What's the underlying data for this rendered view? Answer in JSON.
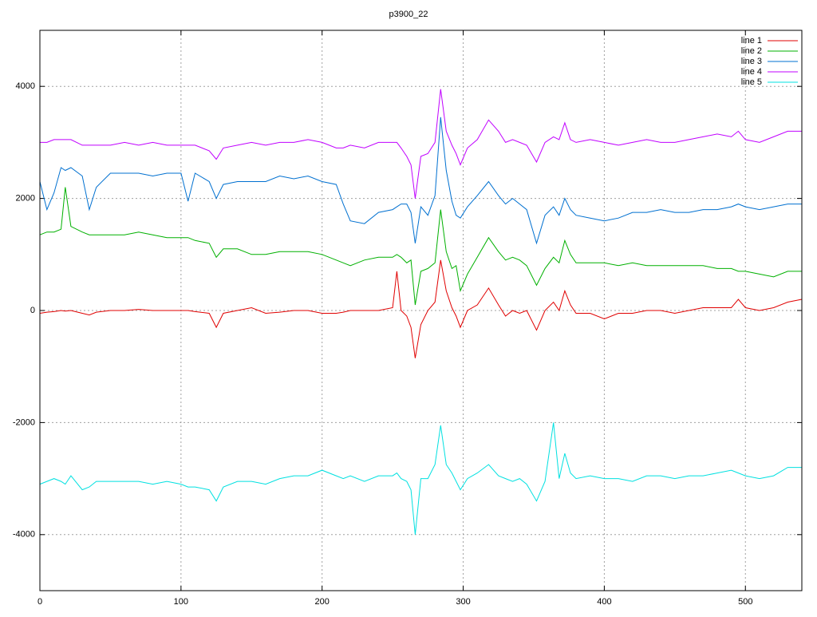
{
  "chart_data": {
    "type": "line",
    "title": "p3900_22",
    "x": [
      0,
      5,
      10,
      15,
      18,
      22,
      30,
      35,
      40,
      50,
      60,
      70,
      80,
      90,
      100,
      105,
      110,
      120,
      125,
      130,
      140,
      150,
      160,
      170,
      180,
      190,
      200,
      210,
      215,
      220,
      230,
      240,
      250,
      253,
      256,
      260,
      263,
      266,
      270,
      275,
      280,
      284,
      288,
      292,
      295,
      298,
      303,
      310,
      318,
      325,
      330,
      335,
      340,
      345,
      352,
      358,
      364,
      368,
      372,
      376,
      380,
      390,
      400,
      410,
      420,
      430,
      440,
      450,
      460,
      470,
      480,
      490,
      495,
      500,
      510,
      520,
      530,
      540
    ],
    "series": [
      {
        "name": "line 1",
        "color": "#e00000",
        "values": [
          -50,
          -30,
          -20,
          0,
          -10,
          0,
          -50,
          -80,
          -30,
          0,
          0,
          20,
          0,
          0,
          0,
          0,
          -20,
          -50,
          -300,
          -50,
          0,
          50,
          -50,
          -30,
          0,
          0,
          -50,
          -50,
          -30,
          0,
          0,
          0,
          50,
          700,
          0,
          -100,
          -300,
          -850,
          -250,
          0,
          150,
          900,
          350,
          50,
          -100,
          -300,
          0,
          100,
          400,
          100,
          -100,
          0,
          -50,
          0,
          -350,
          0,
          150,
          0,
          350,
          100,
          -50,
          -50,
          -150,
          -50,
          -50,
          0,
          0,
          -50,
          0,
          50,
          50,
          50,
          200,
          50,
          0,
          50,
          150,
          200
        ]
      },
      {
        "name": "line 2",
        "color": "#00b000",
        "values": [
          1350,
          1400,
          1400,
          1450,
          2200,
          1500,
          1400,
          1350,
          1350,
          1350,
          1350,
          1400,
          1350,
          1300,
          1300,
          1300,
          1250,
          1200,
          950,
          1100,
          1100,
          1000,
          1000,
          1050,
          1050,
          1050,
          1000,
          900,
          850,
          800,
          900,
          950,
          950,
          1000,
          950,
          850,
          900,
          100,
          700,
          750,
          850,
          1800,
          1050,
          750,
          800,
          350,
          650,
          950,
          1300,
          1050,
          900,
          950,
          900,
          800,
          450,
          750,
          950,
          850,
          1250,
          1000,
          850,
          850,
          850,
          800,
          850,
          800,
          800,
          800,
          800,
          800,
          750,
          750,
          700,
          700,
          650,
          600,
          700,
          700
        ]
      },
      {
        "name": "line 3",
        "color": "#0070d0",
        "values": [
          2300,
          1800,
          2100,
          2550,
          2500,
          2550,
          2400,
          1800,
          2200,
          2450,
          2450,
          2450,
          2400,
          2450,
          2450,
          1950,
          2450,
          2300,
          2000,
          2250,
          2300,
          2300,
          2300,
          2400,
          2350,
          2400,
          2300,
          2250,
          1900,
          1600,
          1550,
          1750,
          1800,
          1850,
          1900,
          1900,
          1750,
          1200,
          1850,
          1700,
          2050,
          3450,
          2500,
          1950,
          1700,
          1650,
          1850,
          2050,
          2300,
          2050,
          1900,
          2000,
          1900,
          1800,
          1200,
          1700,
          1850,
          1700,
          2000,
          1800,
          1700,
          1650,
          1600,
          1650,
          1750,
          1750,
          1800,
          1750,
          1750,
          1800,
          1800,
          1850,
          1900,
          1850,
          1800,
          1850,
          1900,
          1900
        ]
      },
      {
        "name": "line 4",
        "color": "#c000ff",
        "values": [
          3000,
          3000,
          3050,
          3050,
          3050,
          3050,
          2950,
          2950,
          2950,
          2950,
          3000,
          2950,
          3000,
          2950,
          2950,
          2950,
          2950,
          2850,
          2700,
          2900,
          2950,
          3000,
          2950,
          3000,
          3000,
          3050,
          3000,
          2900,
          2900,
          2950,
          2900,
          3000,
          3000,
          3000,
          2900,
          2750,
          2600,
          2000,
          2750,
          2800,
          3000,
          3950,
          3200,
          2950,
          2800,
          2600,
          2900,
          3050,
          3400,
          3200,
          3000,
          3050,
          3000,
          2950,
          2650,
          3000,
          3100,
          3050,
          3350,
          3050,
          3000,
          3050,
          3000,
          2950,
          3000,
          3050,
          3000,
          3000,
          3050,
          3100,
          3150,
          3100,
          3200,
          3050,
          3000,
          3100,
          3200,
          3200
        ]
      },
      {
        "name": "line 5",
        "color": "#00e0e0",
        "values": [
          -3100,
          -3050,
          -3000,
          -3050,
          -3100,
          -2950,
          -3200,
          -3150,
          -3050,
          -3050,
          -3050,
          -3050,
          -3100,
          -3050,
          -3100,
          -3150,
          -3150,
          -3200,
          -3400,
          -3150,
          -3050,
          -3050,
          -3100,
          -3000,
          -2950,
          -2950,
          -2850,
          -2950,
          -3000,
          -2950,
          -3050,
          -2950,
          -2950,
          -2900,
          -3000,
          -3050,
          -3200,
          -4000,
          -3000,
          -3000,
          -2750,
          -2050,
          -2750,
          -2900,
          -3050,
          -3200,
          -3000,
          -2900,
          -2750,
          -2950,
          -3000,
          -3050,
          -3000,
          -3100,
          -3400,
          -3050,
          -2000,
          -3000,
          -2550,
          -2900,
          -3000,
          -2950,
          -3000,
          -3000,
          -3050,
          -2950,
          -2950,
          -3000,
          -2950,
          -2950,
          -2900,
          -2850,
          -2900,
          -2950,
          -3000,
          -2950,
          -2800,
          -2800
        ]
      }
    ],
    "xlim": [
      0,
      540
    ],
    "ylim": [
      -5000,
      5000
    ],
    "xticks": [
      0,
      100,
      200,
      300,
      400,
      500
    ],
    "yticks": [
      -4000,
      -2000,
      0,
      2000,
      4000
    ],
    "grid": true,
    "legend": "top-right"
  }
}
